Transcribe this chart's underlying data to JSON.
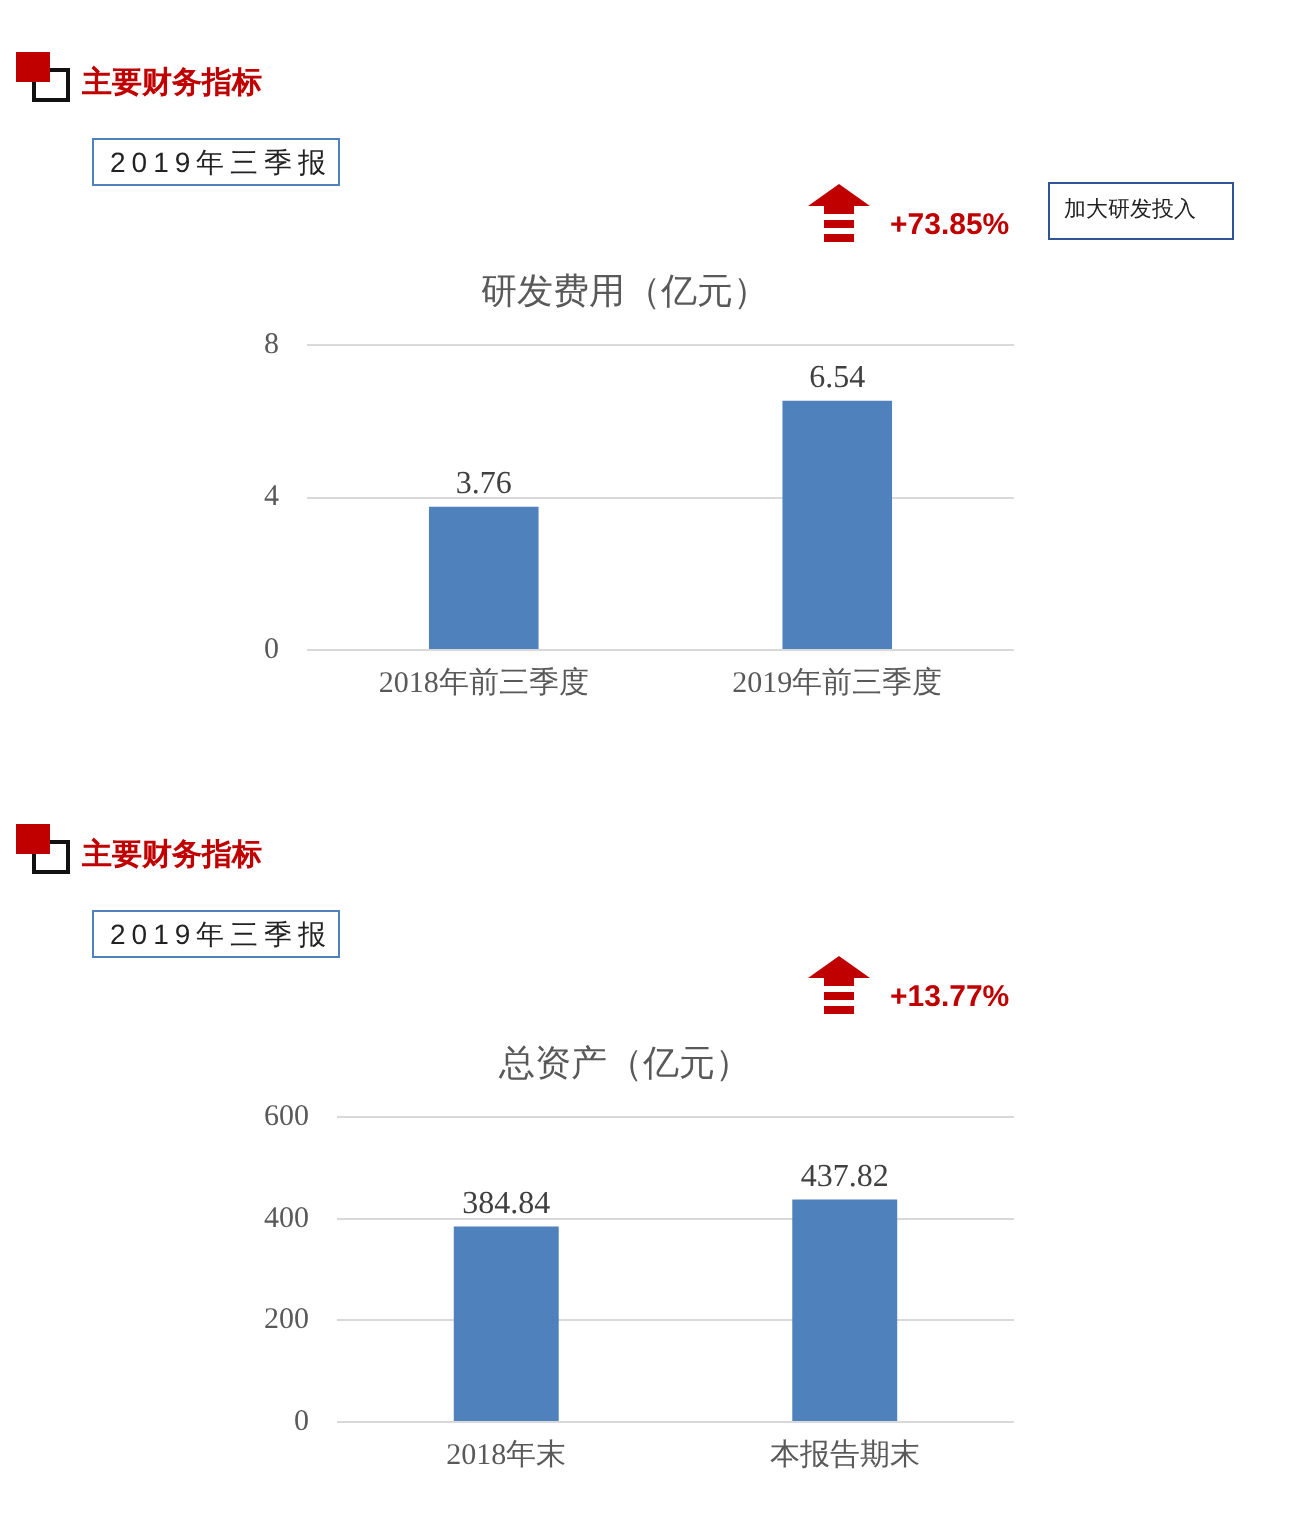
{
  "chart_data": [
    {
      "type": "bar",
      "title": "研发费用（亿元）",
      "annotations": [
        "主要财务指标",
        "2019年三季报",
        "+73.85%",
        "加大研发投入"
      ],
      "categories": [
        "2018年前三季度",
        "2019年前三季度"
      ],
      "values": [
        3.76,
        6.54
      ],
      "color": "#4f81bd",
      "ylim": [
        0,
        8
      ],
      "yticks": [
        0,
        4,
        8
      ],
      "grid": "y",
      "data_labels": true
    },
    {
      "type": "bar",
      "title": "总资产（亿元）",
      "annotations": [
        "主要财务指标",
        "2019年三季报",
        "+13.77%"
      ],
      "categories": [
        "2018年末",
        "本报告期末"
      ],
      "values": [
        384.84,
        437.82
      ],
      "color": "#4f81bd",
      "ylim": [
        0,
        600
      ],
      "yticks": [
        0,
        200,
        400,
        600
      ],
      "grid": "y",
      "data_labels": true
    }
  ]
}
